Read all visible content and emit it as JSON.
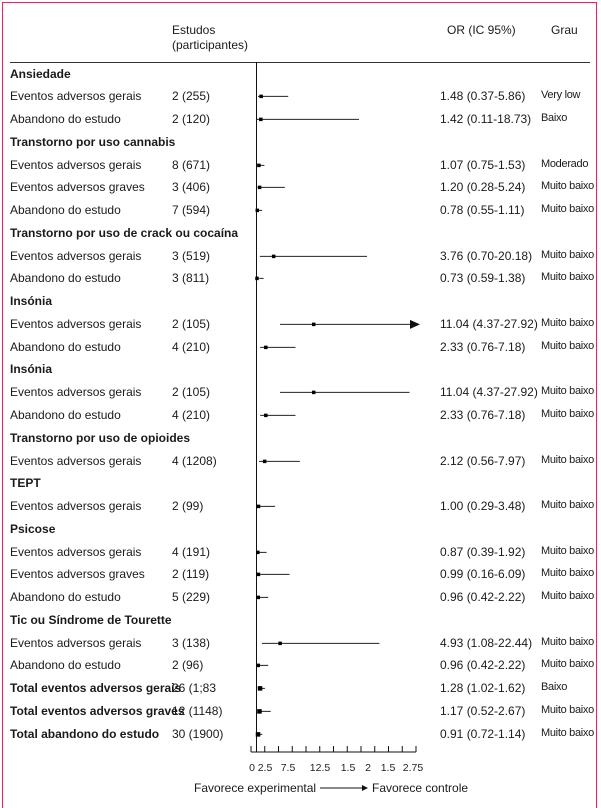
{
  "header": {
    "studies_line1": "Estudos",
    "studies_line2": "(participantes)",
    "or": "OR (IC 95%)",
    "grade": "Grau"
  },
  "footer": {
    "left": "Favorece experimental",
    "right": "Favorece controle"
  },
  "colors": {
    "frame": "#c8385a",
    "ink": "#111111"
  },
  "chart_data": {
    "type": "forest",
    "x_ticks": [
      "0",
      "2.5",
      "7.5",
      "12.5",
      "1.5",
      "2",
      "1.5",
      "2.75"
    ],
    "reference_line": 0,
    "rows": [
      {
        "kind": "group",
        "label": "Ansiedade"
      },
      {
        "kind": "item",
        "label": "Eventos adversos gerais",
        "studies": "2 (255)",
        "or_text": "1.48 (0.37-5.86)",
        "grade": "Very low",
        "or": 1.48,
        "lo": 0.37,
        "hi": 5.86
      },
      {
        "kind": "item",
        "label": "Abandono do estudo",
        "studies": "2 (120)",
        "or_text": "1.42 (0.11-18.73)",
        "grade": "Baixo",
        "or": 1.42,
        "lo": 0.11,
        "hi": 18.73
      },
      {
        "kind": "group",
        "label": "Transtorno por uso cannabis"
      },
      {
        "kind": "item",
        "label": "Eventos adversos gerais",
        "studies": "8 (671)",
        "or_text": "1.07 (0.75-1.53)",
        "grade": "Moderado",
        "or": 1.07,
        "lo": 0.75,
        "hi": 1.53
      },
      {
        "kind": "item",
        "label": "Eventos adversos graves",
        "studies": "3 (406)",
        "or_text": "1.20 (0.28-5.24)",
        "grade": "Muito baixo",
        "or": 1.2,
        "lo": 0.28,
        "hi": 5.24
      },
      {
        "kind": "item",
        "label": "Abandono do estudo",
        "studies": "7 (594)",
        "or_text": "0.78 (0.55-1.11)",
        "grade": "Muito baixo",
        "or": 0.78,
        "lo": 0.55,
        "hi": 1.11
      },
      {
        "kind": "group",
        "label": "Transtorno por uso de crack ou cocaína"
      },
      {
        "kind": "item",
        "label": "Eventos adversos gerais",
        "studies": "3 (519)",
        "or_text": "3.76 (0.70-20.18)",
        "grade": "Muito baixo",
        "or": 3.76,
        "lo": 0.7,
        "hi": 20.18
      },
      {
        "kind": "item",
        "label": "Abandono do estudo",
        "studies": "3 (811)",
        "or_text": "0.73 (0.59-1.38)",
        "grade": "Muito baixo",
        "or": 0.73,
        "lo": 0.59,
        "hi": 1.38
      },
      {
        "kind": "group",
        "label": "Insónia"
      },
      {
        "kind": "item",
        "label": "Eventos adversos gerais",
        "studies": "2 (105)",
        "or_text": "11.04 (4.37-27.92)",
        "grade": "Muito baixo",
        "or": 11.04,
        "lo": 4.37,
        "hi": 27.92,
        "arrow": true
      },
      {
        "kind": "item",
        "label": "Abandono do estudo",
        "studies": "4 (210)",
        "or_text": "2.33 (0.76-7.18)",
        "grade": "Muito baixo",
        "or": 2.33,
        "lo": 0.76,
        "hi": 7.18
      },
      {
        "kind": "group",
        "label": "Insónia"
      },
      {
        "kind": "item",
        "label": "Eventos adversos gerais",
        "studies": "2 (105)",
        "or_text": "11.04 (4.37-27.92)",
        "grade": "Muito baixo",
        "or": 11.04,
        "lo": 4.37,
        "hi": 27.92
      },
      {
        "kind": "item",
        "label": "Abandono do estudo",
        "studies": "4 (210)",
        "or_text": "2.33 (0.76-7.18)",
        "grade": "Muito baixo",
        "or": 2.33,
        "lo": 0.76,
        "hi": 7.18
      },
      {
        "kind": "group",
        "label": "Transtorno por uso de opioides"
      },
      {
        "kind": "item",
        "label": "Eventos adversos gerais",
        "studies": "4 (1208)",
        "or_text": "2.12 (0.56-7.97)",
        "grade": "Muito baixo",
        "or": 2.12,
        "lo": 0.56,
        "hi": 7.97
      },
      {
        "kind": "group",
        "label": "TEPT"
      },
      {
        "kind": "item",
        "label": "Eventos adversos gerais",
        "studies": "2 (99)",
        "or_text": "1.00 (0.29-3.48)",
        "grade": "Muito baixo",
        "or": 1.0,
        "lo": 0.29,
        "hi": 3.48
      },
      {
        "kind": "group",
        "label": "Psicose"
      },
      {
        "kind": "item",
        "label": "Eventos adversos gerais",
        "studies": "4 (191)",
        "or_text": "0.87 (0.39-1.92)",
        "grade": "Muito baixo",
        "or": 0.87,
        "lo": 0.39,
        "hi": 1.92
      },
      {
        "kind": "item",
        "label": "Eventos adversos graves",
        "studies": "2 (119)",
        "or_text": "0.99 (0.16-6.09)",
        "grade": "Muito baixo",
        "or": 0.99,
        "lo": 0.16,
        "hi": 6.09
      },
      {
        "kind": "item",
        "label": "Abandono do estudo",
        "studies": "5 (229)",
        "or_text": "0.96 (0.42-2.22)",
        "grade": "Muito baixo",
        "or": 0.96,
        "lo": 0.42,
        "hi": 2.22
      },
      {
        "kind": "group",
        "label": "Tic ou Síndrome de Tourette"
      },
      {
        "kind": "item",
        "label": "Eventos adversos gerais",
        "studies": "3 (138)",
        "or_text": "4.93 (1.08-22.44)",
        "grade": "Muito baixo",
        "or": 4.93,
        "lo": 1.08,
        "hi": 22.44
      },
      {
        "kind": "item",
        "label": "Abandono do estudo",
        "studies": "2 (96)",
        "or_text": "0.96 (0.42-2.22)",
        "grade": "Muito baixo",
        "or": 0.96,
        "lo": 0.42,
        "hi": 2.22
      },
      {
        "kind": "total",
        "label": "Total eventos adversos gerais",
        "studies": "26 (1;83",
        "or_text": "1.28 (1.02-1.62)",
        "grade": "Baixo",
        "or": 1.28,
        "lo": 1.02,
        "hi": 1.62
      },
      {
        "kind": "total",
        "label": "Total eventos adversos graves",
        "studies": "12 (1148)",
        "or_text": "1.17 (0.52-2.67)",
        "grade": "Muito baixo",
        "or": 1.17,
        "lo": 0.52,
        "hi": 2.67
      },
      {
        "kind": "total",
        "label": "Total abandono do estudo",
        "studies": "30 (1900)",
        "or_text": "0.91 (0.72-1.14)",
        "grade": "Muito baixo",
        "or": 0.91,
        "lo": 0.72,
        "hi": 1.14
      }
    ]
  }
}
